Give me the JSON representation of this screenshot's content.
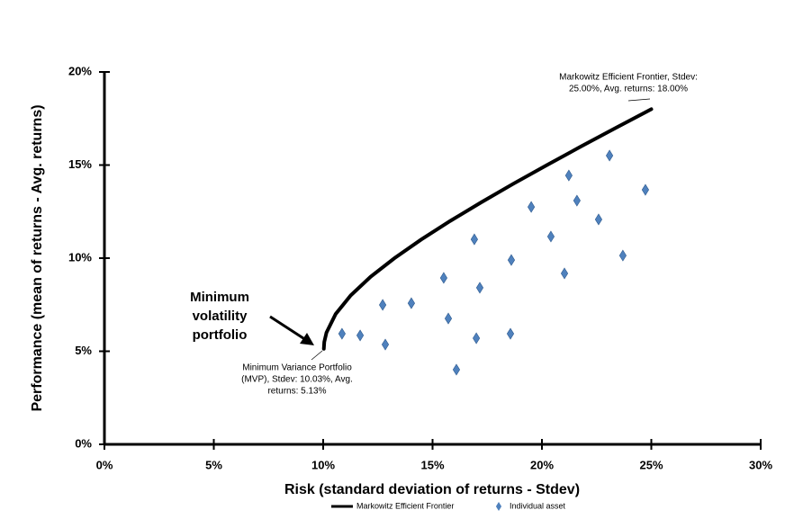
{
  "chart_data": {
    "type": "scatter",
    "xlabel": "Risk (standard deviation of returns - Stdev)",
    "ylabel": "Performance (mean of returns - Avg. returns)",
    "xlim": [
      0,
      30
    ],
    "ylim": [
      0,
      20
    ],
    "xticks": [
      {
        "value": 0,
        "label": "0%"
      },
      {
        "value": 5,
        "label": "5%"
      },
      {
        "value": 10,
        "label": "10%"
      },
      {
        "value": 15,
        "label": "15%"
      },
      {
        "value": 20,
        "label": "20%"
      },
      {
        "value": 25,
        "label": "25%"
      },
      {
        "value": 30,
        "label": "30%"
      }
    ],
    "yticks": [
      {
        "value": 0,
        "label": "0%"
      },
      {
        "value": 5,
        "label": "5%"
      },
      {
        "value": 10,
        "label": "10%"
      },
      {
        "value": 15,
        "label": "15%"
      },
      {
        "value": 20,
        "label": "20%"
      }
    ],
    "legend": "bottom",
    "series": [
      {
        "name": "Markowitz Efficient Frontier",
        "type": "line",
        "color": "#000000",
        "x": [
          10.03,
          10.05,
          10.15,
          10.57,
          11.26,
          12.17,
          13.26,
          14.48,
          15.81,
          17.23,
          18.7,
          20.23,
          21.79,
          23.38,
          25.0
        ],
        "values": [
          5.13,
          5.5,
          6,
          7,
          8,
          9,
          10,
          11,
          12,
          13,
          14,
          15,
          16,
          17,
          18
        ]
      },
      {
        "name": "Individual asset",
        "type": "scatter",
        "color": "#4f81bd",
        "x": [
          10.86,
          11.69,
          12.84,
          12.72,
          14.03,
          15.51,
          15.72,
          16.09,
          16.91,
          17.0,
          17.16,
          18.56,
          18.6,
          19.51,
          20.41,
          21.03,
          21.23,
          21.6,
          22.59,
          23.09,
          23.7,
          24.73
        ],
        "values": [
          5.94,
          5.85,
          5.36,
          7.49,
          7.58,
          8.94,
          6.76,
          4.01,
          11.01,
          5.7,
          8.41,
          5.94,
          9.9,
          12.75,
          11.16,
          9.18,
          14.44,
          13.09,
          12.08,
          15.51,
          10.14,
          13.67
        ]
      }
    ],
    "annotations": [
      {
        "lines": [
          "Markowitz Efficient Frontier, Stdev:",
          "25.00%, Avg. returns: 18.00%"
        ]
      },
      {
        "lines": [
          "Minimum Variance Portfolio",
          "(MVP), Stdev: 10.03%, Avg.",
          "returns: 5.13%"
        ]
      },
      {
        "lines": [
          "Minimum",
          "volatility",
          "portfolio"
        ]
      }
    ]
  }
}
